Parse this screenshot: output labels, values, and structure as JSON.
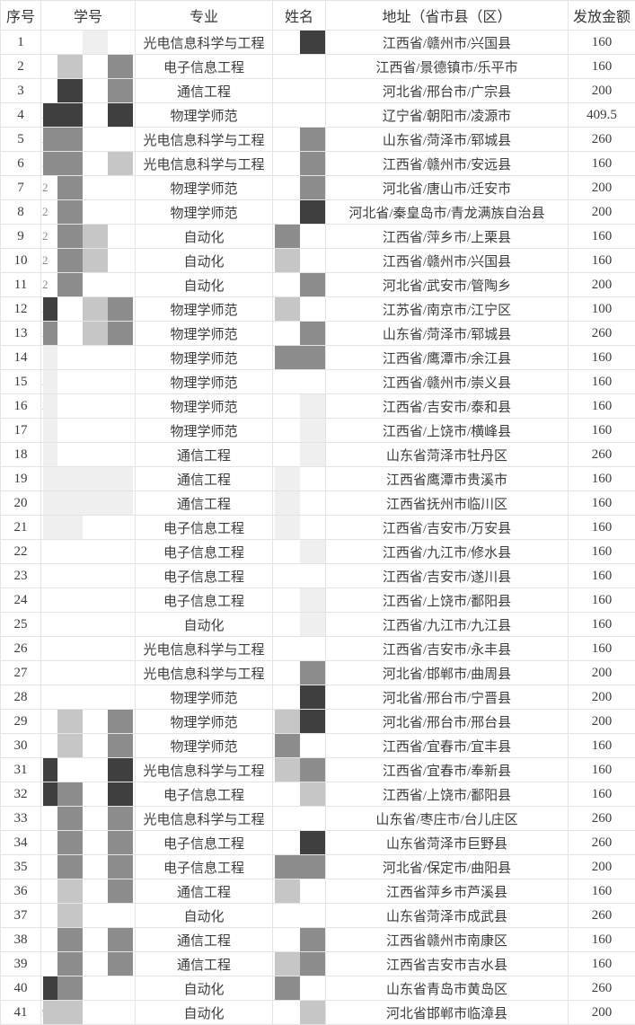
{
  "mask_colors": {
    "w": "transparent",
    "f": "#efefef",
    "l": "#c6c6c6",
    "m": "#8d8d8d",
    "d": "#3f3f3f"
  },
  "table": {
    "columns": [
      {
        "key": "index",
        "label": "序号"
      },
      {
        "key": "student_id",
        "label": "学号"
      },
      {
        "key": "major",
        "label": "专业"
      },
      {
        "key": "name",
        "label": "姓名"
      },
      {
        "key": "address",
        "label": "地址（省市县（区）"
      },
      {
        "key": "amount",
        "label": "发放金额"
      }
    ],
    "rows": [
      {
        "index": "1",
        "major": "光电信息科学与工程",
        "address": "江西省/赣州市/兴国县",
        "amount": "160",
        "id_hint": "",
        "id_mask": [
          "w",
          "w",
          "f",
          "w"
        ],
        "name_mask": [
          "w",
          "d"
        ]
      },
      {
        "index": "2",
        "major": "电子信息工程",
        "address": "江西省/景德镇市/乐平市",
        "amount": "160",
        "id_hint": "",
        "id_mask": [
          "w",
          "l",
          "w",
          "m"
        ],
        "name_mask": [
          "w",
          "w"
        ]
      },
      {
        "index": "3",
        "major": "通信工程",
        "address": "河北省/邢台市/广宗县",
        "amount": "200",
        "id_hint": "",
        "id_mask": [
          "w",
          "d",
          "w",
          "m"
        ],
        "name_mask": [
          "w",
          "w"
        ]
      },
      {
        "index": "4",
        "major": "物理学师范",
        "address": "辽宁省/朝阳市/凌源市",
        "amount": "409.5",
        "id_hint": "2",
        "id_mask": [
          "d",
          "d",
          "w",
          "d"
        ],
        "name_mask": [
          "w",
          "w"
        ]
      },
      {
        "index": "5",
        "major": "光电信息科学与工程",
        "address": "山东省/菏泽市/郓城县",
        "amount": "260",
        "id_hint": "2",
        "id_mask": [
          "m",
          "m",
          "w",
          "w"
        ],
        "name_mask": [
          "w",
          "m"
        ]
      },
      {
        "index": "6",
        "major": "光电信息科学与工程",
        "address": "江西省/赣州市/安远县",
        "amount": "160",
        "id_hint": "2",
        "id_mask": [
          "m",
          "m",
          "w",
          "l"
        ],
        "name_mask": [
          "w",
          "m"
        ]
      },
      {
        "index": "7",
        "major": "物理学师范",
        "address": "河北省/唐山市/迁安市",
        "amount": "200",
        "id_hint": "2",
        "id_mask": [
          "w",
          "m",
          "w",
          "w"
        ],
        "name_mask": [
          "w",
          "m"
        ]
      },
      {
        "index": "8",
        "major": "物理学师范",
        "address": "河北省/秦皇岛市/青龙满族自治县",
        "amount": "200",
        "id_hint": "2",
        "id_mask": [
          "w",
          "m",
          "w",
          "w"
        ],
        "name_mask": [
          "w",
          "d"
        ]
      },
      {
        "index": "9",
        "major": "自动化",
        "address": "江西省/萍乡市/上栗县",
        "amount": "160",
        "id_hint": "2",
        "id_mask": [
          "w",
          "m",
          "l",
          "w"
        ],
        "name_mask": [
          "m",
          "w"
        ]
      },
      {
        "index": "10",
        "major": "自动化",
        "address": "江西省/赣州市/兴国县",
        "amount": "160",
        "id_hint": "2",
        "id_mask": [
          "w",
          "m",
          "l",
          "w"
        ],
        "name_mask": [
          "l",
          "w"
        ]
      },
      {
        "index": "11",
        "major": "自动化",
        "address": "河北省/武安市/管陶乡",
        "amount": "200",
        "id_hint": "2",
        "id_mask": [
          "w",
          "m",
          "w",
          "w"
        ],
        "name_mask": [
          "w",
          "m"
        ]
      },
      {
        "index": "12",
        "major": "物理学师范",
        "address": "江苏省/南京市/江宁区",
        "amount": "100",
        "id_hint": "2",
        "id_mask": [
          "d",
          "w",
          "l",
          "m"
        ],
        "name_mask": [
          "l",
          "w"
        ]
      },
      {
        "index": "13",
        "major": "物理学师范",
        "address": "山东省/菏泽市/郓城县",
        "amount": "260",
        "id_hint": "2",
        "id_mask": [
          "m",
          "w",
          "l",
          "m"
        ],
        "name_mask": [
          "w",
          "m"
        ]
      },
      {
        "index": "14",
        "major": "物理学师范",
        "address": "江西省/鹰潭市/余江县",
        "amount": "160",
        "id_hint": "",
        "id_mask": [
          "f",
          "w",
          "w",
          "w"
        ],
        "name_mask": [
          "m",
          "m"
        ]
      },
      {
        "index": "15",
        "major": "物理学师范",
        "address": "江西省/赣州市/崇义县",
        "amount": "160",
        "id_hint": "2",
        "id_mask": [
          "f",
          "w",
          "w",
          "w"
        ],
        "name_mask": [
          "w",
          "w"
        ]
      },
      {
        "index": "16",
        "major": "物理学师范",
        "address": "江西省/吉安市/泰和县",
        "amount": "160",
        "id_hint": "2",
        "id_mask": [
          "f",
          "w",
          "w",
          "w"
        ],
        "name_mask": [
          "w",
          "f"
        ]
      },
      {
        "index": "17",
        "major": "物理学师范",
        "address": "江西省/上饶市/横峰县",
        "amount": "160",
        "id_hint": "",
        "id_mask": [
          "f",
          "w",
          "w",
          "w"
        ],
        "name_mask": [
          "w",
          "f"
        ]
      },
      {
        "index": "18",
        "major": "通信工程",
        "address": "山东省菏泽市牡丹区",
        "amount": "260",
        "id_hint": "",
        "id_mask": [
          "f",
          "w",
          "w",
          "w"
        ],
        "name_mask": [
          "w",
          "f"
        ]
      },
      {
        "index": "19",
        "major": "通信工程",
        "address": "江西省鹰潭市贵溪市",
        "amount": "160",
        "id_hint": "",
        "id_mask": [
          "f",
          "f",
          "f",
          "f"
        ],
        "name_mask": [
          "f",
          "w"
        ]
      },
      {
        "index": "20",
        "major": "通信工程",
        "address": "江西省抚州市临川区",
        "amount": "160",
        "id_hint": "",
        "id_mask": [
          "f",
          "f",
          "f",
          "f"
        ],
        "name_mask": [
          "f",
          "w"
        ]
      },
      {
        "index": "21",
        "major": "电子信息工程",
        "address": "江西省/吉安市/万安县",
        "amount": "160",
        "id_hint": "",
        "id_mask": [
          "f",
          "f",
          "w",
          "w"
        ],
        "name_mask": [
          "f",
          "w"
        ]
      },
      {
        "index": "22",
        "major": "电子信息工程",
        "address": "江西省/九江市/修水县",
        "amount": "160",
        "id_hint": "",
        "id_mask": [
          "w",
          "w",
          "w",
          "w"
        ],
        "name_mask": [
          "w",
          "f"
        ]
      },
      {
        "index": "23",
        "major": "电子信息工程",
        "address": "江西省/吉安市/遂川县",
        "amount": "160",
        "id_hint": "",
        "id_mask": [
          "w",
          "w",
          "w",
          "w"
        ],
        "name_mask": [
          "w",
          "w"
        ]
      },
      {
        "index": "24",
        "major": "电子信息工程",
        "address": "江西省/上饶市/鄱阳县",
        "amount": "160",
        "id_hint": "",
        "id_mask": [
          "w",
          "w",
          "w",
          "w"
        ],
        "name_mask": [
          "w",
          "f"
        ]
      },
      {
        "index": "25",
        "major": "自动化",
        "address": "江西省/九江市/九江县",
        "amount": "160",
        "id_hint": "",
        "id_mask": [
          "w",
          "w",
          "w",
          "w"
        ],
        "name_mask": [
          "w",
          "f"
        ]
      },
      {
        "index": "26",
        "major": "光电信息科学与工程",
        "address": "江西省/吉安市/永丰县",
        "amount": "160",
        "id_hint": "",
        "id_mask": [
          "w",
          "w",
          "w",
          "w"
        ],
        "name_mask": [
          "w",
          "w"
        ]
      },
      {
        "index": "27",
        "major": "光电信息科学与工程",
        "address": "河北省/邯郸市/曲周县",
        "amount": "200",
        "id_hint": "",
        "id_mask": [
          "w",
          "w",
          "w",
          "w"
        ],
        "name_mask": [
          "w",
          "m"
        ]
      },
      {
        "index": "28",
        "major": "物理学师范",
        "address": "河北省/邢台市/宁晋县",
        "amount": "200",
        "id_hint": "",
        "id_mask": [
          "w",
          "w",
          "w",
          "w"
        ],
        "name_mask": [
          "w",
          "d"
        ]
      },
      {
        "index": "29",
        "major": "物理学师范",
        "address": "河北省/邢台市/邢台县",
        "amount": "200",
        "id_hint": "",
        "id_mask": [
          "w",
          "l",
          "w",
          "m"
        ],
        "name_mask": [
          "l",
          "d"
        ]
      },
      {
        "index": "30",
        "major": "物理学师范",
        "address": "江西省/宜春市/宜丰县",
        "amount": "160",
        "id_hint": "",
        "id_mask": [
          "w",
          "l",
          "w",
          "m"
        ],
        "name_mask": [
          "m",
          "w"
        ]
      },
      {
        "index": "31",
        "major": "光电信息科学与工程",
        "address": "江西省/宜春市/奉新县",
        "amount": "160",
        "id_hint": "",
        "id_mask": [
          "d",
          "w",
          "w",
          "d"
        ],
        "name_mask": [
          "l",
          "m"
        ]
      },
      {
        "index": "32",
        "major": "电子信息工程",
        "address": "江西省/上饶市/鄱阳县",
        "amount": "160",
        "id_hint": "",
        "id_mask": [
          "d",
          "m",
          "w",
          "d"
        ],
        "name_mask": [
          "w",
          "l"
        ]
      },
      {
        "index": "33",
        "major": "光电信息科学与工程",
        "address": "山东省/枣庄市/台儿庄区",
        "amount": "260",
        "id_hint": "",
        "id_mask": [
          "w",
          "m",
          "w",
          "m"
        ],
        "name_mask": [
          "w",
          "w"
        ]
      },
      {
        "index": "34",
        "major": "电子信息工程",
        "address": "山东省菏泽市巨野县",
        "amount": "260",
        "id_hint": "",
        "id_mask": [
          "w",
          "m",
          "w",
          "m"
        ],
        "name_mask": [
          "w",
          "d"
        ]
      },
      {
        "index": "35",
        "major": "电子信息工程",
        "address": "河北省/保定市/曲阳县",
        "amount": "200",
        "id_hint": "",
        "id_mask": [
          "w",
          "m",
          "w",
          "m"
        ],
        "name_mask": [
          "m",
          "m"
        ]
      },
      {
        "index": "36",
        "major": "通信工程",
        "address": "江西省萍乡市芦溪县",
        "amount": "160",
        "id_hint": "",
        "id_mask": [
          "w",
          "l",
          "w",
          "m"
        ],
        "name_mask": [
          "l",
          "w"
        ]
      },
      {
        "index": "37",
        "major": "自动化",
        "address": "山东省菏泽市成武县",
        "amount": "260",
        "id_hint": "",
        "id_mask": [
          "w",
          "l",
          "w",
          "w"
        ],
        "name_mask": [
          "w",
          "w"
        ]
      },
      {
        "index": "38",
        "major": "通信工程",
        "address": "江西省赣州市南康区",
        "amount": "160",
        "id_hint": "",
        "id_mask": [
          "w",
          "m",
          "w",
          "m"
        ],
        "name_mask": [
          "w",
          "m"
        ]
      },
      {
        "index": "39",
        "major": "通信工程",
        "address": "江西省吉安市吉水县",
        "amount": "160",
        "id_hint": "",
        "id_mask": [
          "w",
          "m",
          "w",
          "m"
        ],
        "name_mask": [
          "l",
          "m"
        ]
      },
      {
        "index": "40",
        "major": "自动化",
        "address": "山东省青岛市黄岛区",
        "amount": "260",
        "id_hint": "",
        "id_mask": [
          "d",
          "m",
          "w",
          "w"
        ],
        "name_mask": [
          "m",
          "w"
        ]
      },
      {
        "index": "41",
        "major": "自动化",
        "address": "河北省邯郸市临漳县",
        "amount": "200",
        "id_hint": "9",
        "id_mask": [
          "l",
          "l",
          "w",
          "w"
        ],
        "name_mask": [
          "w",
          "l"
        ]
      }
    ]
  }
}
